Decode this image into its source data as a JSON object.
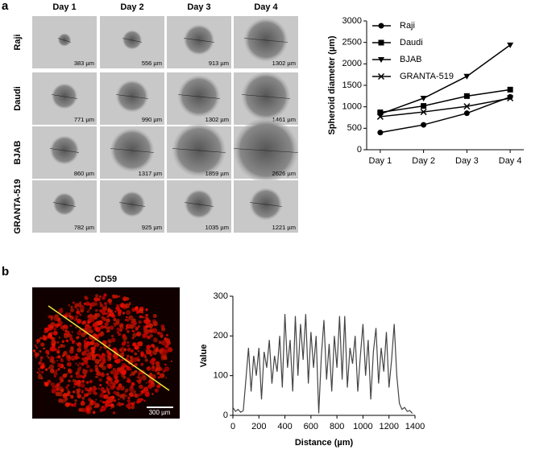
{
  "panel_labels": [
    "a",
    "b"
  ],
  "micrographs": {
    "columns": [
      "Day 1",
      "Day 2",
      "Day 3",
      "Day 4"
    ],
    "rows": [
      {
        "label": "Raji",
        "cells": [
          "383 µm",
          "556 µm",
          "913 µm",
          "1302 µm"
        ]
      },
      {
        "label": "Daudi",
        "cells": [
          "771 µm",
          "990 µm",
          "1302 µm",
          "1461 µm"
        ]
      },
      {
        "label": "BJAB",
        "cells": [
          "860 µm",
          "1317 µm",
          "1859 µm",
          "2626 µm"
        ]
      },
      {
        "label": "GRANTA-519",
        "cells": [
          "782 µm",
          "925 µm",
          "1035 µm",
          "1221 µm"
        ]
      }
    ]
  },
  "fluorescence": {
    "title": "CD59",
    "scale_bar": "300 µm"
  },
  "chart_data": [
    {
      "type": "line",
      "y_label": "Spheroid diameter (µm)",
      "categories": [
        "Day 1",
        "Day 2",
        "Day 3",
        "Day 4"
      ],
      "series": [
        {
          "name": "Raji",
          "marker": "circle",
          "color": "#000000",
          "values": [
            400,
            580,
            850,
            1230
          ]
        },
        {
          "name": "Daudi",
          "marker": "square",
          "color": "#000000",
          "values": [
            870,
            1020,
            1250,
            1400
          ]
        },
        {
          "name": "BJAB",
          "marker": "triangle-down",
          "color": "#000000",
          "values": [
            830,
            1200,
            1710,
            2440
          ]
        },
        {
          "name": "GRANTA-519",
          "marker": "x",
          "color": "#000000",
          "values": [
            770,
            880,
            1010,
            1200
          ]
        }
      ],
      "ylim": [
        0,
        3000
      ],
      "yticks": [
        0,
        500,
        1000,
        1500,
        2000,
        2500,
        3000
      ],
      "legend": "upper-left"
    },
    {
      "type": "line",
      "x_label": "Distance (µm)",
      "y_label": "Value",
      "color": "#444444",
      "x": [
        0,
        20,
        40,
        60,
        80,
        100,
        120,
        140,
        160,
        180,
        200,
        220,
        240,
        260,
        280,
        300,
        320,
        340,
        360,
        380,
        400,
        420,
        440,
        460,
        480,
        500,
        520,
        540,
        560,
        580,
        600,
        620,
        640,
        660,
        680,
        700,
        720,
        740,
        760,
        780,
        800,
        820,
        840,
        860,
        880,
        900,
        920,
        940,
        960,
        980,
        1000,
        1020,
        1040,
        1060,
        1080,
        1100,
        1120,
        1140,
        1160,
        1180,
        1200,
        1220,
        1240,
        1260,
        1280,
        1300,
        1320,
        1340,
        1360,
        1380
      ],
      "series": [
        {
          "values": [
            20,
            10,
            15,
            8,
            12,
            90,
            170,
            60,
            150,
            100,
            170,
            40,
            160,
            120,
            190,
            80,
            150,
            110,
            200,
            70,
            255,
            120,
            190,
            60,
            250,
            100,
            230,
            140,
            255,
            80,
            210,
            120,
            200,
            5,
            150,
            240,
            90,
            180,
            60,
            200,
            120,
            250,
            90,
            250,
            70,
            170,
            130,
            200,
            60,
            150,
            230,
            100,
            190,
            40,
            160,
            220,
            80,
            170,
            110,
            210,
            70,
            140,
            230,
            100,
            30,
            15,
            20,
            10,
            12,
            5
          ]
        }
      ],
      "xlim": [
        0,
        1400
      ],
      "xticks": [
        0,
        200,
        400,
        600,
        800,
        1000,
        1200,
        1400
      ],
      "ylim": [
        0,
        300
      ],
      "yticks": [
        0,
        100,
        200,
        300
      ]
    }
  ]
}
